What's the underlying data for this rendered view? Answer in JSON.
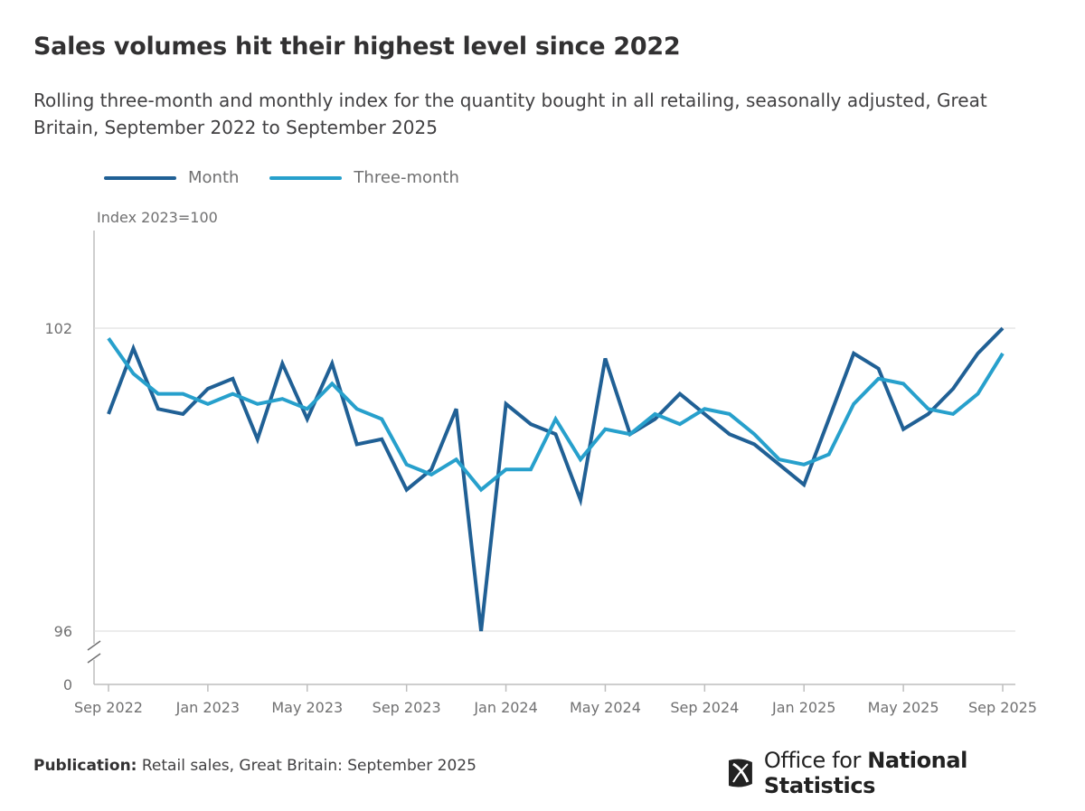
{
  "title": "Sales volumes hit their highest level since 2022",
  "subtitle": "Rolling three-month and monthly index for the quantity bought in all retailing, seasonally adjusted, Great Britain, September 2022 to September 2025",
  "footer": {
    "publication_label": "Publication:",
    "publication_text": "Retail sales, Great Britain: September 2025",
    "logo_text_light": "Office for",
    "logo_text_bold": "National Statistics"
  },
  "colors": {
    "month": "#206095",
    "three_month": "#27A0CC",
    "grid": "#d9d9d9",
    "axis": "#bebebe"
  },
  "chart_data": {
    "type": "line",
    "title": "Sales volumes hit their highest level since 2022",
    "ylabel": "Index 2023=100",
    "y_ticks": [
      0,
      96,
      102
    ],
    "y_axis_break": true,
    "grid": true,
    "legend_position": "top-left",
    "x": [
      "Sep 2022",
      "Oct 2022",
      "Nov 2022",
      "Dec 2022",
      "Jan 2023",
      "Feb 2023",
      "Mar 2023",
      "Apr 2023",
      "May 2023",
      "Jun 2023",
      "Jul 2023",
      "Aug 2023",
      "Sep 2023",
      "Oct 2023",
      "Nov 2023",
      "Dec 2023",
      "Jan 2024",
      "Feb 2024",
      "Mar 2024",
      "Apr 2024",
      "May 2024",
      "Jun 2024",
      "Jul 2024",
      "Aug 2024",
      "Sep 2024",
      "Oct 2024",
      "Nov 2024",
      "Dec 2024",
      "Jan 2025",
      "Feb 2025",
      "Mar 2025",
      "Apr 2025",
      "May 2025",
      "Jun 2025",
      "Jul 2025",
      "Aug 2025",
      "Sep 2025"
    ],
    "x_tick_labels": [
      "Sep 2022",
      "Jan 2023",
      "May 2023",
      "Sep 2023",
      "Jan 2024",
      "May 2024",
      "Sep 2024",
      "Jan 2025",
      "May 2025",
      "Sep 2025"
    ],
    "series": [
      {
        "name": "Month",
        "values": [
          100.3,
          101.6,
          100.4,
          100.3,
          100.8,
          101.0,
          99.8,
          101.3,
          100.2,
          101.3,
          99.7,
          99.8,
          98.8,
          99.2,
          100.4,
          96.0,
          100.5,
          100.1,
          99.9,
          98.6,
          101.4,
          99.9,
          100.2,
          100.7,
          100.3,
          99.9,
          99.7,
          99.3,
          98.9,
          100.2,
          101.5,
          101.2,
          100.0,
          100.3,
          100.8,
          101.5,
          102.0
        ]
      },
      {
        "name": "Three-month",
        "values": [
          101.8,
          101.1,
          100.7,
          100.7,
          100.5,
          100.7,
          100.5,
          100.6,
          100.4,
          100.9,
          100.4,
          100.2,
          99.3,
          99.1,
          99.4,
          98.8,
          99.2,
          99.2,
          100.2,
          99.4,
          100.0,
          99.9,
          100.3,
          100.1,
          100.4,
          100.3,
          99.9,
          99.4,
          99.3,
          99.5,
          100.5,
          101.0,
          100.9,
          100.4,
          100.3,
          100.7,
          101.5
        ]
      }
    ]
  }
}
